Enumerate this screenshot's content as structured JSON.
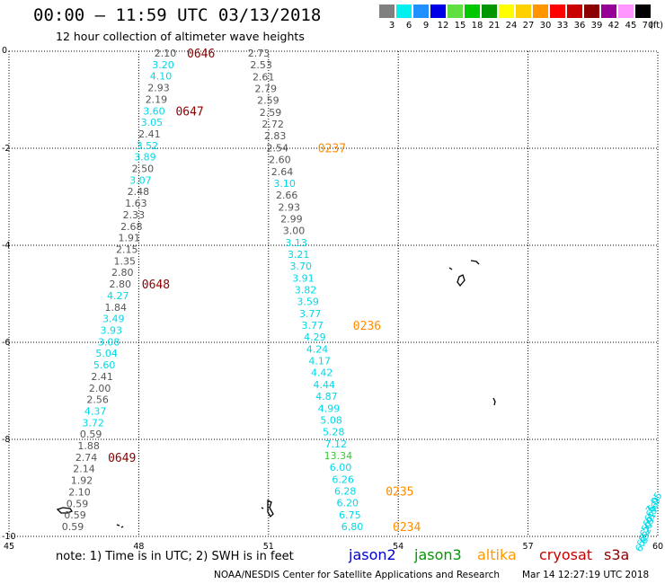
{
  "header": {
    "title": "00:00 – 11:59 UTC 03/13/2018",
    "subtitle": "12 hour collection of altimeter wave heights"
  },
  "legend": {
    "unit": "(ft)",
    "items": [
      {
        "label": "3",
        "color": "#808080"
      },
      {
        "label": "6",
        "color": "#00f0f0"
      },
      {
        "label": "9",
        "color": "#1e90ff"
      },
      {
        "label": "12",
        "color": "#0000e6"
      },
      {
        "label": "15",
        "color": "#60e040"
      },
      {
        "label": "18",
        "color": "#00c800"
      },
      {
        "label": "21",
        "color": "#009600"
      },
      {
        "label": "24",
        "color": "#ffff00"
      },
      {
        "label": "27",
        "color": "#ffd000"
      },
      {
        "label": "30",
        "color": "#ff9600"
      },
      {
        "label": "33",
        "color": "#ff0000"
      },
      {
        "label": "36",
        "color": "#c80000"
      },
      {
        "label": "39",
        "color": "#8b0000"
      },
      {
        "label": "42",
        "color": "#960096"
      },
      {
        "label": "45",
        "color": "#ff96ff"
      },
      {
        "label": "70",
        "color": "#000000"
      }
    ]
  },
  "map": {
    "lon_range": [
      45,
      60
    ],
    "lat_range": [
      -10,
      0
    ],
    "x_ticks": [
      "45",
      "48",
      "51",
      "54",
      "57",
      "60"
    ],
    "y_ticks": [
      "0",
      "-2",
      "-4",
      "-6",
      "-8",
      "-10"
    ],
    "track_colors": {
      "grey": "#555555",
      "cyan": "#00d8e8",
      "green": "#33cc33",
      "blue": "#0033cc",
      "maroon": "#8b0000",
      "orange": "#ff8c00"
    },
    "track1": {
      "values": [
        "2.10",
        "3.20",
        "4.10",
        "2.93",
        "2.19",
        "3.60",
        "3.05",
        "2.41",
        "3.52",
        "3.89",
        "2.50",
        "3.07",
        "2.48",
        "1.63",
        "2.33",
        "2.68",
        "1.91",
        "2.15",
        "1.35",
        "2.80",
        "2.80",
        "4.27",
        "1.84",
        "3.49",
        "3.93",
        "3.08",
        "5.04",
        "5.60",
        "2.41",
        "2.00",
        "2.56",
        "4.37",
        "3.72",
        "0.59",
        "1.88",
        "2.74",
        "2.14",
        "1.92",
        "2.10",
        "0.59",
        "0.59",
        "0.59"
      ],
      "colors": [
        "grey",
        "cyan",
        "cyan",
        "grey",
        "grey",
        "cyan",
        "cyan",
        "grey",
        "cyan",
        "cyan",
        "grey",
        "cyan",
        "grey",
        "grey",
        "grey",
        "grey",
        "grey",
        "grey",
        "grey",
        "grey",
        "grey",
        "cyan",
        "grey",
        "cyan",
        "cyan",
        "cyan",
        "cyan",
        "cyan",
        "grey",
        "grey",
        "grey",
        "cyan",
        "cyan",
        "grey",
        "grey",
        "grey",
        "grey",
        "grey",
        "grey",
        "grey",
        "grey",
        "grey"
      ],
      "times": [
        {
          "label": "0646",
          "color": "maroon"
        },
        {
          "label": "0647",
          "color": "maroon"
        },
        {
          "label": "0648",
          "color": "maroon"
        },
        {
          "label": "0649",
          "color": "maroon"
        }
      ]
    },
    "track2": {
      "values": [
        "2.73",
        "2.53",
        "2.61",
        "2.79",
        "2.59",
        "2.59",
        "2.72",
        "2.83",
        "2.54",
        "2.60",
        "2.64",
        "3.10",
        "2.66",
        "2.93",
        "2.99",
        "3.00",
        "3.13",
        "3.21",
        "3.70",
        "3.91",
        "3.82",
        "3.59",
        "3.77",
        "3.77",
        "4.29",
        "4.24",
        "4.17",
        "4.42",
        "4.44",
        "4.87",
        "4.99",
        "5.08",
        "5.28",
        "7.12",
        "13.34",
        "6.00",
        "6.26",
        "6.28",
        "6.20",
        "6.75",
        "6.80"
      ],
      "colors": [
        "grey",
        "grey",
        "grey",
        "grey",
        "grey",
        "grey",
        "grey",
        "grey",
        "grey",
        "grey",
        "grey",
        "cyan",
        "grey",
        "grey",
        "grey",
        "grey",
        "cyan",
        "cyan",
        "cyan",
        "cyan",
        "cyan",
        "cyan",
        "cyan",
        "cyan",
        "cyan",
        "cyan",
        "cyan",
        "cyan",
        "cyan",
        "cyan",
        "cyan",
        "cyan",
        "cyan",
        "cyan",
        "green",
        "cyan",
        "cyan",
        "cyan",
        "cyan",
        "cyan",
        "cyan"
      ],
      "times": [
        {
          "label": "0237",
          "color": "orange"
        },
        {
          "label": "0236",
          "color": "orange"
        },
        {
          "label": "0235",
          "color": "orange"
        },
        {
          "label": "0234",
          "color": "orange"
        }
      ]
    },
    "track3": {
      "values": [
        "6.8",
        "6.5",
        "6.2",
        "6.0",
        "5.9",
        "6.1",
        "6.3",
        "6.6",
        "6.9",
        "7.05"
      ]
    }
  },
  "footer": {
    "note": "note: 1) Time is in UTC; 2) SWH is in feet",
    "missions": [
      {
        "name": "jason2",
        "color": "#0000cc"
      },
      {
        "name": "jason3",
        "color": "#009900"
      },
      {
        "name": "altika",
        "color": "#ff9900"
      },
      {
        "name": "cryosat",
        "color": "#cc0000"
      },
      {
        "name": "s3a",
        "color": "#8b0000"
      }
    ],
    "credit": "NOAA/NESDIS Center for Satellite Applications and Research",
    "generated": "Mar 14 12:27:19 UTC 2018"
  }
}
